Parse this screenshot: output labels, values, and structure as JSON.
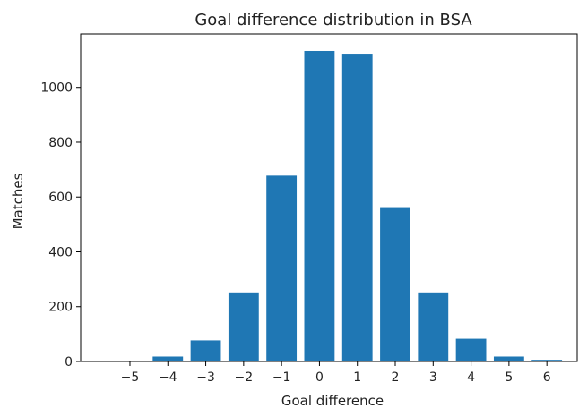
{
  "chart_data": {
    "type": "bar",
    "title": "Goal difference distribution in BSA",
    "xlabel": "Goal difference",
    "ylabel": "Matches",
    "categories": [
      "−5",
      "−4",
      "−3",
      "−2",
      "−1",
      "0",
      "1",
      "2",
      "3",
      "4",
      "5",
      "6"
    ],
    "x": [
      -5,
      -4,
      -3,
      -2,
      -1,
      0,
      1,
      2,
      3,
      4,
      5,
      6
    ],
    "values": [
      3,
      18,
      77,
      252,
      678,
      1133,
      1123,
      563,
      252,
      83,
      18,
      6
    ],
    "ylim": [
      0,
      1195
    ],
    "yticks": [
      0,
      200,
      400,
      600,
      800,
      1000
    ],
    "ytick_labels": [
      "0",
      "200",
      "400",
      "600",
      "800",
      "1000"
    ],
    "bar_color": "#1f77b4",
    "grid": false
  }
}
